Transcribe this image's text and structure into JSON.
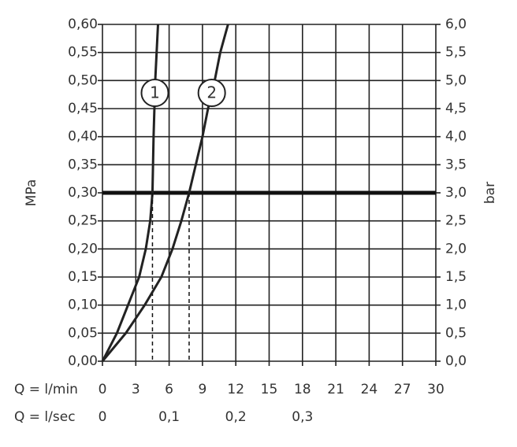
{
  "chart_data": {
    "type": "line",
    "x_label": "Q = l/min",
    "x2_label": "Q = l/sec",
    "y_label": "MPa",
    "y2_label": "bar",
    "xlim": [
      0,
      30
    ],
    "xticks": [
      0,
      3,
      6,
      9,
      12,
      15,
      18,
      21,
      24,
      27,
      30
    ],
    "x2lim": [
      0,
      0.5
    ],
    "x2ticks": [
      0,
      {
        "value": 0.1,
        "label": "0,1"
      },
      {
        "value": 0.2,
        "label": "0,2"
      },
      {
        "value": 0.3,
        "label": "0,3"
      }
    ],
    "ylim": [
      0,
      0.6
    ],
    "yticks": [
      {
        "value": 0,
        "label": "0,00"
      },
      {
        "value": 0.05,
        "label": "0,05"
      },
      {
        "value": 0.1,
        "label": "0,10"
      },
      {
        "value": 0.15,
        "label": "0,15"
      },
      {
        "value": 0.2,
        "label": "0,20"
      },
      {
        "value": 0.25,
        "label": "0,25"
      },
      {
        "value": 0.3,
        "label": "0,30"
      },
      {
        "value": 0.35,
        "label": "0,35"
      },
      {
        "value": 0.4,
        "label": "0,40"
      },
      {
        "value": 0.45,
        "label": "0,45"
      },
      {
        "value": 0.5,
        "label": "0,50"
      },
      {
        "value": 0.55,
        "label": "0,55"
      },
      {
        "value": 0.6,
        "label": "0,60"
      }
    ],
    "y2lim": [
      0,
      6
    ],
    "y2ticks": [
      {
        "value": 0,
        "label": "0,0"
      },
      {
        "value": 0.5,
        "label": "0,5"
      },
      {
        "value": 1,
        "label": "1,0"
      },
      {
        "value": 1.5,
        "label": "1,5"
      },
      {
        "value": 2,
        "label": "2,0"
      },
      {
        "value": 2.5,
        "label": "2,5"
      },
      {
        "value": 3,
        "label": "3,0"
      },
      {
        "value": 3.5,
        "label": "3,5"
      },
      {
        "value": 4,
        "label": "4,0"
      },
      {
        "value": 4.5,
        "label": "4,5"
      },
      {
        "value": 5,
        "label": "5,0"
      },
      {
        "value": 5.5,
        "label": "5,5"
      },
      {
        "value": 6,
        "label": "6,0"
      }
    ],
    "grid": true,
    "reference_line": 0.3,
    "series": [
      {
        "name": "1",
        "color": "#222222",
        "x": [
          0,
          1.3,
          2.3,
          3.3,
          3.9,
          4.3,
          4.5,
          4.6,
          4.75,
          5.0
        ],
        "values": [
          0,
          0.05,
          0.1,
          0.15,
          0.2,
          0.25,
          0.3,
          0.4,
          0.5,
          0.6
        ]
      },
      {
        "name": "2",
        "color": "#222222",
        "x": [
          0,
          2.1,
          3.8,
          5.3,
          6.3,
          7.1,
          7.8,
          8.4,
          9.0,
          9.5,
          10.1,
          10.6,
          11.3
        ],
        "values": [
          0,
          0.05,
          0.1,
          0.15,
          0.2,
          0.25,
          0.3,
          0.35,
          0.4,
          0.45,
          0.5,
          0.55,
          0.6
        ]
      }
    ]
  }
}
